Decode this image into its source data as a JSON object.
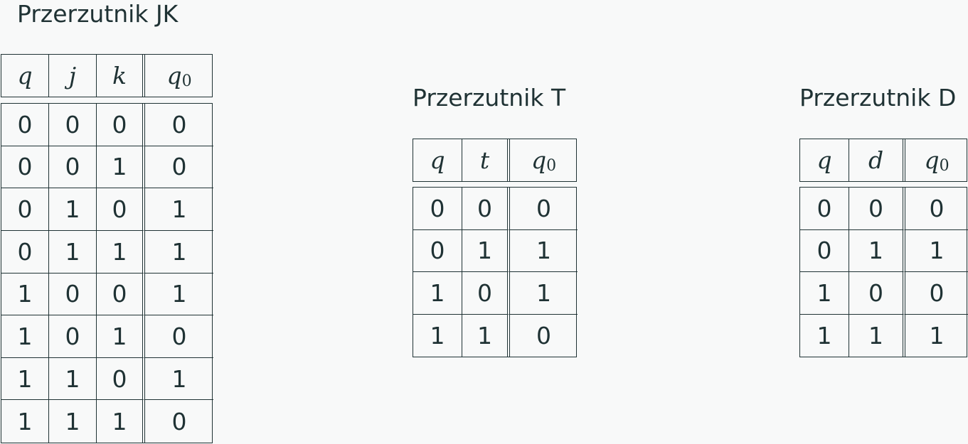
{
  "jk": {
    "title": "Przerzutnik JK",
    "headers": [
      "q",
      "j",
      "k",
      "q"
    ],
    "header_subscript": "0",
    "rows": [
      [
        "0",
        "0",
        "0",
        "0"
      ],
      [
        "0",
        "0",
        "1",
        "0"
      ],
      [
        "0",
        "1",
        "0",
        "1"
      ],
      [
        "0",
        "1",
        "1",
        "1"
      ],
      [
        "1",
        "0",
        "0",
        "1"
      ],
      [
        "1",
        "0",
        "1",
        "0"
      ],
      [
        "1",
        "1",
        "0",
        "1"
      ],
      [
        "1",
        "1",
        "1",
        "0"
      ]
    ]
  },
  "t": {
    "title": "Przerzutnik T",
    "headers": [
      "q",
      "t",
      "q"
    ],
    "header_subscript": "0",
    "rows": [
      [
        "0",
        "0",
        "0"
      ],
      [
        "0",
        "1",
        "1"
      ],
      [
        "1",
        "0",
        "1"
      ],
      [
        "1",
        "1",
        "0"
      ]
    ]
  },
  "d": {
    "title": "Przerzutnik D",
    "headers": [
      "q",
      "d",
      "q"
    ],
    "header_subscript": "0",
    "rows": [
      [
        "0",
        "0",
        "0"
      ],
      [
        "0",
        "1",
        "1"
      ],
      [
        "1",
        "0",
        "0"
      ],
      [
        "1",
        "1",
        "1"
      ]
    ]
  }
}
